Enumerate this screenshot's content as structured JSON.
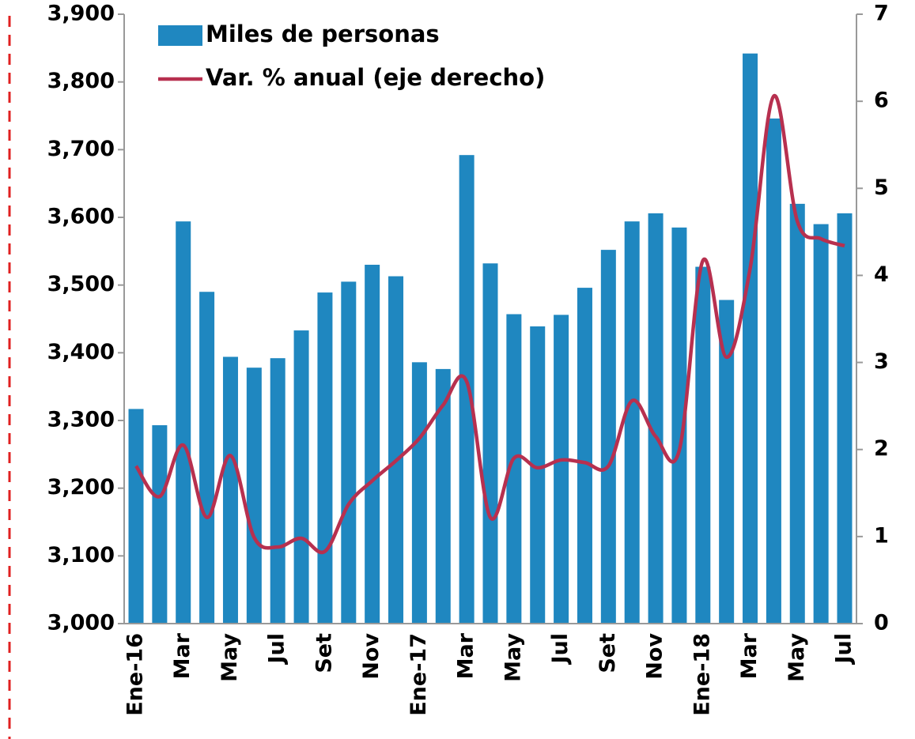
{
  "chart_data": {
    "type": "bar-line",
    "categories": [
      "Ene-16",
      null,
      "Mar",
      null,
      "May",
      null,
      "Jul",
      null,
      "Set",
      null,
      "Nov",
      null,
      "Ene-17",
      null,
      "Mar",
      null,
      "May",
      null,
      "Jul",
      null,
      "Set",
      null,
      "Nov",
      null,
      "Ene-18",
      null,
      "Mar",
      null,
      "May",
      null,
      "Jul"
    ],
    "series": [
      {
        "name": "Miles de personas",
        "type": "bar",
        "color": "#1f87c0",
        "values": [
          3317,
          3293,
          3594,
          3490,
          3394,
          3378,
          3392,
          3433,
          3489,
          3505,
          3530,
          3513,
          3386,
          3376,
          3692,
          3532,
          3457,
          3439,
          3456,
          3496,
          3552,
          3594,
          3606,
          3585,
          3527,
          3478,
          3842,
          3746,
          3620,
          3590,
          3606
        ]
      },
      {
        "name": "Var. % anual (eje derecho)",
        "type": "line",
        "axis": "y2",
        "color": "#b7304f",
        "values": [
          1.81,
          1.46,
          2.05,
          1.22,
          1.93,
          0.99,
          0.88,
          0.98,
          0.83,
          1.37,
          1.64,
          1.87,
          2.13,
          2.51,
          2.78,
          1.22,
          1.9,
          1.79,
          1.88,
          1.85,
          1.81,
          2.56,
          2.15,
          1.99,
          4.17,
          3.06,
          4.08,
          6.06,
          4.62,
          4.42,
          4.34
        ]
      }
    ],
    "ylim": [
      3000,
      3900
    ],
    "yticks": [
      {
        "value": 3000,
        "label": "3,000"
      },
      {
        "value": 3100,
        "label": "3,100"
      },
      {
        "value": 3200,
        "label": "3,200"
      },
      {
        "value": 3300,
        "label": "3,300"
      },
      {
        "value": 3400,
        "label": "3,400"
      },
      {
        "value": 3500,
        "label": "3,500"
      },
      {
        "value": 3600,
        "label": "3,600"
      },
      {
        "value": 3700,
        "label": "3,700"
      },
      {
        "value": 3800,
        "label": "3,800"
      },
      {
        "value": 3900,
        "label": "3,900"
      }
    ],
    "y2lim": [
      0,
      7
    ],
    "y2ticks": [
      0,
      1,
      2,
      3,
      4,
      5,
      6,
      7
    ],
    "legend": "upper left"
  }
}
